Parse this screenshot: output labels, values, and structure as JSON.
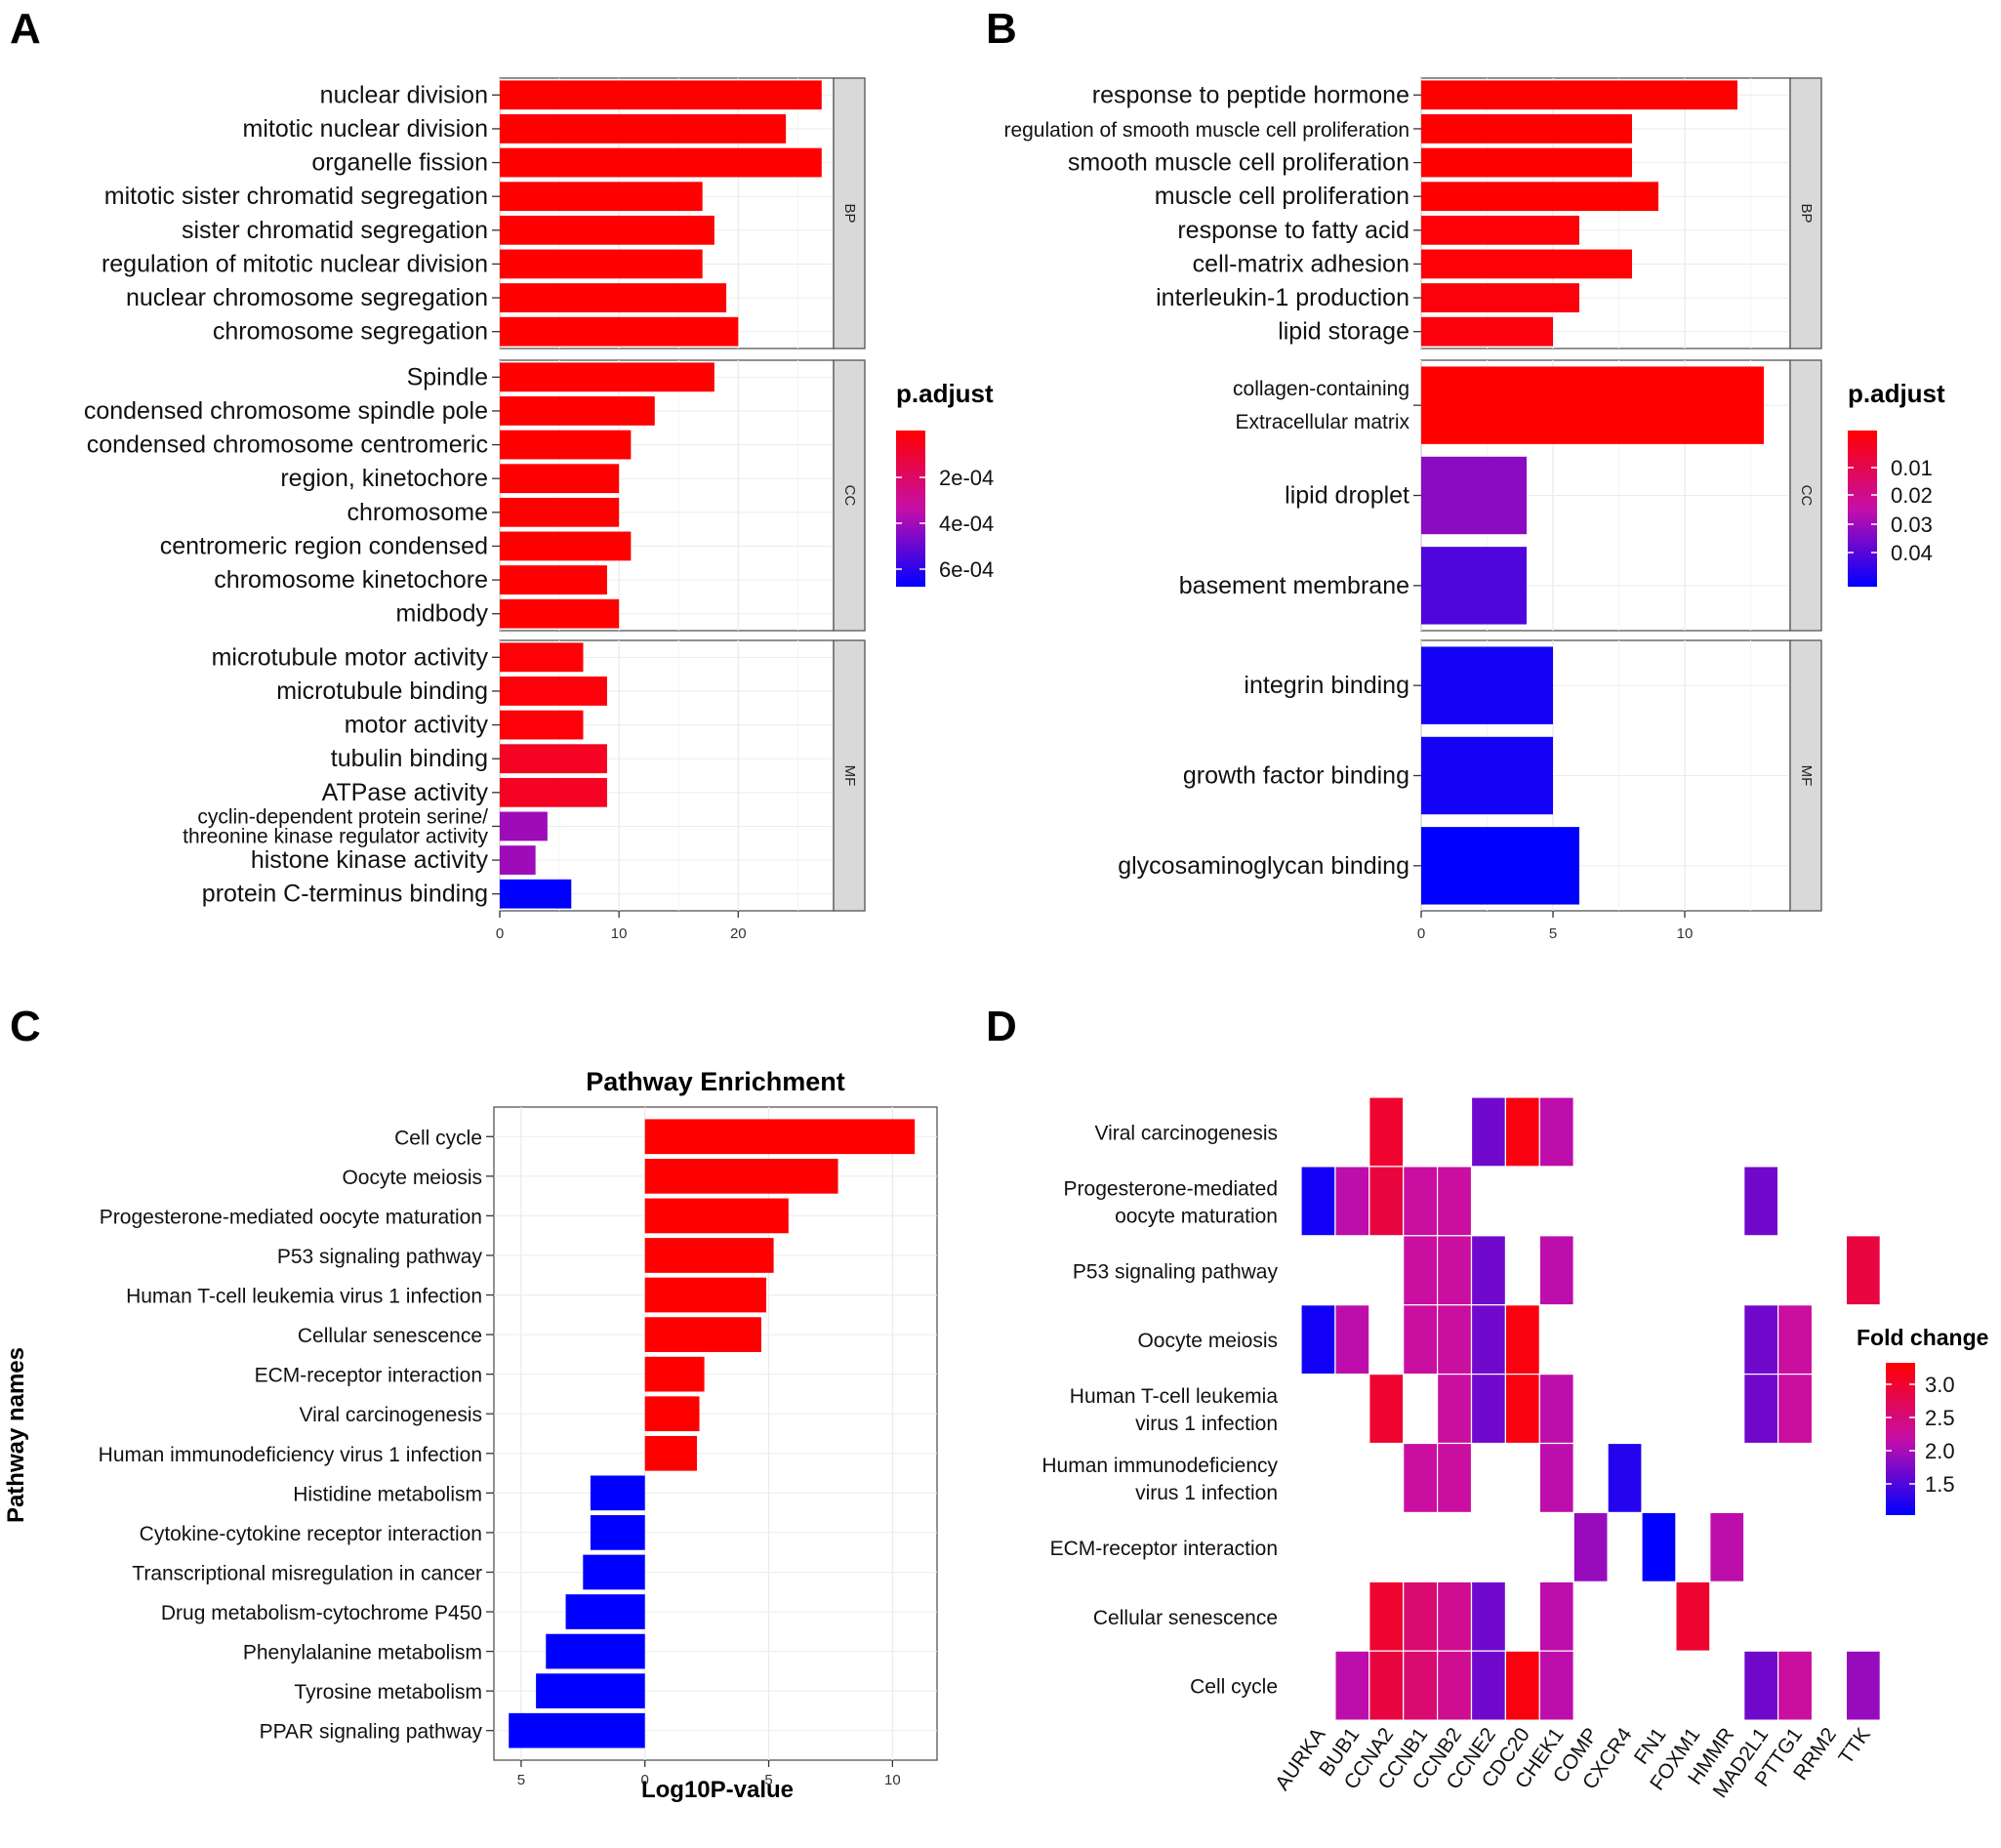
{
  "panels": {
    "a": "A",
    "b": "B",
    "c": "C",
    "d": "D"
  },
  "colors": {
    "high": "#ff0000",
    "mid": "#c60fa8",
    "low": "#0000ff"
  },
  "chart_data": [
    {
      "id": "A",
      "type": "bar",
      "orientation": "horizontal",
      "xlim": [
        0,
        28
      ],
      "xticks": [
        0,
        10,
        20
      ],
      "legend": {
        "title": "p.adjust",
        "ticks": [
          "2e-04",
          "4e-04",
          "6e-04"
        ],
        "placement": "right"
      },
      "facets": [
        {
          "name": "BP",
          "items": [
            {
              "label": "nuclear division",
              "value": 27,
              "p": 0.0
            },
            {
              "label": "mitotic nuclear division",
              "value": 24,
              "p": 0.0
            },
            {
              "label": "organelle fission",
              "value": 27,
              "p": 0.0
            },
            {
              "label": "mitotic sister chromatid segregation",
              "value": 17,
              "p": 0.0
            },
            {
              "label": "sister chromatid segregation",
              "value": 18,
              "p": 0.0
            },
            {
              "label": "regulation of mitotic nuclear division",
              "value": 17,
              "p": 0.0
            },
            {
              "label": "nuclear chromosome segregation",
              "value": 19,
              "p": 0.0
            },
            {
              "label": "chromosome segregation",
              "value": 20,
              "p": 0.0
            }
          ]
        },
        {
          "name": "CC",
          "items": [
            {
              "label": "Spindle",
              "value": 18,
              "p": 0.0
            },
            {
              "label": "condensed chromosome spindle pole",
              "value": 13,
              "p": 0.0
            },
            {
              "label": "condensed chromosome centromeric",
              "value": 11,
              "p": 0.0
            },
            {
              "label": "region, kinetochore",
              "value": 10,
              "p": 0.0
            },
            {
              "label": "chromosome",
              "value": 10,
              "p": 0.0
            },
            {
              "label": "centromeric region condensed",
              "value": 11,
              "p": 0.0
            },
            {
              "label": "chromosome kinetochore",
              "value": 9,
              "p": 0.0
            },
            {
              "label": "midbody",
              "value": 10,
              "p": 0.0
            }
          ]
        },
        {
          "name": "MF",
          "items": [
            {
              "label": "microtubule motor activity",
              "value": 7,
              "p": 0.02
            },
            {
              "label": "microtubule binding",
              "value": 9,
              "p": 0.03
            },
            {
              "label": "motor activity",
              "value": 7,
              "p": 0.03
            },
            {
              "label": "tubulin binding",
              "value": 9,
              "p": 0.1
            },
            {
              "label": "ATPase activity",
              "value": 9,
              "p": 0.1
            },
            {
              "label": "cyclin-dependent protein serine/",
              "label2": "threonine kinase regulator activity",
              "value": 4,
              "p": 0.6
            },
            {
              "label": "histone kinase activity",
              "value": 3,
              "p": 0.6
            },
            {
              "label": "protein C-terminus binding",
              "value": 6,
              "p": 1.0
            }
          ]
        }
      ]
    },
    {
      "id": "B",
      "type": "bar",
      "orientation": "horizontal",
      "xlim": [
        0,
        14
      ],
      "xticks": [
        0,
        5,
        10
      ],
      "legend": {
        "title": "p.adjust",
        "ticks": [
          "0.01",
          "0.02",
          "0.03",
          "0.04"
        ],
        "placement": "right"
      },
      "facets": [
        {
          "name": "BP",
          "items": [
            {
              "label": "response to peptide hormone",
              "value": 12,
              "p": 0.0,
              "small": false
            },
            {
              "label": "regulation of smooth muscle cell proliferation",
              "value": 8,
              "p": 0.0,
              "small": true
            },
            {
              "label": "smooth muscle cell proliferation",
              "value": 8,
              "p": 0.0,
              "small": false
            },
            {
              "label": "muscle cell proliferation",
              "value": 9,
              "p": 0.0,
              "small": false
            },
            {
              "label": "response to fatty acid",
              "value": 6,
              "p": 0.02,
              "small": false
            },
            {
              "label": "cell-matrix adhesion",
              "value": 8,
              "p": 0.02,
              "small": false
            },
            {
              "label": "interleukin-1 production",
              "value": 6,
              "p": 0.04,
              "small": false
            },
            {
              "label": "lipid storage",
              "value": 5,
              "p": 0.04,
              "small": false
            }
          ]
        },
        {
          "name": "CC",
          "items": [
            {
              "label": "collagen-containing",
              "label2": "Extracellular matrix",
              "value": 13,
              "p": 0.0
            },
            {
              "label": "lipid droplet",
              "value": 4,
              "p": 0.65
            },
            {
              "label": "basement membrane",
              "value": 4,
              "p": 0.8
            }
          ]
        },
        {
          "name": "MF",
          "items": [
            {
              "label": "integrin binding",
              "value": 5,
              "p": 0.95
            },
            {
              "label": "growth factor binding",
              "value": 5,
              "p": 0.95
            },
            {
              "label": "glycosaminoglycan binding",
              "value": 6,
              "p": 1.0
            }
          ]
        }
      ]
    },
    {
      "id": "C",
      "type": "bar",
      "orientation": "horizontal",
      "title": "Pathway Enrichment",
      "xlabel": "Log10P-value",
      "ylabel": "Pathway names",
      "xlim": [
        -6.1,
        11.8
      ],
      "xticks": [
        {
          "v": -5,
          "t": "5"
        },
        {
          "v": 0,
          "t": "0"
        },
        {
          "v": 5,
          "t": "5"
        },
        {
          "v": 10,
          "t": "10"
        }
      ],
      "categories": [
        "Cell cycle",
        "Oocyte meiosis",
        "Progesterone-mediated oocyte maturation",
        "P53 signaling pathway",
        "Human T-cell leukemia virus 1 infection",
        "Cellular senescence",
        "ECM-receptor interaction",
        "Viral carcinogenesis",
        "Human immunodeficiency virus 1 infection",
        "Histidine metabolism",
        "Cytokine-cytokine receptor interaction",
        "Transcriptional misregulation in cancer",
        "Drug metabolism-cytochrome P450",
        "Phenylalanine metabolism",
        "Tyrosine metabolism",
        "PPAR signaling pathway"
      ],
      "values": [
        10.9,
        7.8,
        5.8,
        5.2,
        4.9,
        4.7,
        2.4,
        2.2,
        2.1,
        -2.2,
        -2.2,
        -2.5,
        -3.2,
        -4.0,
        -4.4,
        -5.5
      ]
    },
    {
      "id": "D",
      "type": "heatmap",
      "legend": {
        "title": "Fold change",
        "ticks": [
          "3.0",
          "2.5",
          "2.0",
          "1.5"
        ],
        "range": [
          1.2,
          3.3
        ],
        "placement": "right"
      },
      "columns": [
        "AURKA",
        "BUB1",
        "CCNA2",
        "CCNB1",
        "CCNB2",
        "CCNE2",
        "CDC20",
        "CHEK1",
        "COMP",
        "CXCR4",
        "FN1",
        "FOXM1",
        "HMMR",
        "MAD2L1",
        "PTTG1",
        "RRM2",
        "TTK"
      ],
      "rows": [
        {
          "label": "Viral carcinogenesis",
          "cells": [
            {
              "col": 2,
              "v": 3.0
            },
            {
              "col": 5,
              "v": 1.8
            },
            {
              "col": 6,
              "v": 3.2
            },
            {
              "col": 7,
              "v": 2.2
            }
          ]
        },
        {
          "label": "Progesterone-mediated",
          "label2": "oocyte maturation",
          "cells": [
            {
              "col": 0,
              "v": 1.3
            },
            {
              "col": 1,
              "v": 2.2
            },
            {
              "col": 2,
              "v": 2.9
            },
            {
              "col": 3,
              "v": 2.3
            },
            {
              "col": 4,
              "v": 2.3
            },
            {
              "col": 13,
              "v": 1.8
            }
          ]
        },
        {
          "label": "P53 signaling pathway",
          "cells": [
            {
              "col": 3,
              "v": 2.3
            },
            {
              "col": 4,
              "v": 2.3
            },
            {
              "col": 5,
              "v": 1.8
            },
            {
              "col": 7,
              "v": 2.2
            },
            {
              "col": 16,
              "v": 2.9
            }
          ]
        },
        {
          "label": "Oocyte meiosis",
          "cells": [
            {
              "col": 0,
              "v": 1.3
            },
            {
              "col": 1,
              "v": 2.2
            },
            {
              "col": 3,
              "v": 2.3
            },
            {
              "col": 4,
              "v": 2.3
            },
            {
              "col": 5,
              "v": 1.8
            },
            {
              "col": 6,
              "v": 3.2
            },
            {
              "col": 13,
              "v": 1.8
            },
            {
              "col": 14,
              "v": 2.3
            }
          ]
        },
        {
          "label": "Human T-cell leukemia",
          "label2": "virus 1 infection",
          "cells": [
            {
              "col": 2,
              "v": 3.0
            },
            {
              "col": 4,
              "v": 2.3
            },
            {
              "col": 5,
              "v": 1.8
            },
            {
              "col": 6,
              "v": 3.2
            },
            {
              "col": 7,
              "v": 2.2
            },
            {
              "col": 13,
              "v": 1.8
            },
            {
              "col": 14,
              "v": 2.3
            }
          ]
        },
        {
          "label": "Human immunodeficiency",
          "label2": "virus 1 infection",
          "cells": [
            {
              "col": 3,
              "v": 2.3
            },
            {
              "col": 4,
              "v": 2.3
            },
            {
              "col": 7,
              "v": 2.2
            },
            {
              "col": 9,
              "v": 1.4
            }
          ]
        },
        {
          "label": "ECM-receptor interaction",
          "cells": [
            {
              "col": 8,
              "v": 2.0
            },
            {
              "col": 10,
              "v": 1.2
            },
            {
              "col": 12,
              "v": 2.2
            }
          ]
        },
        {
          "label": "Cellular senescence",
          "cells": [
            {
              "col": 2,
              "v": 3.0
            },
            {
              "col": 3,
              "v": 2.6
            },
            {
              "col": 4,
              "v": 2.4
            },
            {
              "col": 5,
              "v": 1.8
            },
            {
              "col": 7,
              "v": 2.2
            },
            {
              "col": 11,
              "v": 3.0
            }
          ]
        },
        {
          "label": "Cell cycle",
          "cells": [
            {
              "col": 1,
              "v": 2.2
            },
            {
              "col": 2,
              "v": 2.9
            },
            {
              "col": 3,
              "v": 2.6
            },
            {
              "col": 4,
              "v": 2.4
            },
            {
              "col": 5,
              "v": 1.8
            },
            {
              "col": 6,
              "v": 3.2
            },
            {
              "col": 7,
              "v": 2.2
            },
            {
              "col": 13,
              "v": 1.8
            },
            {
              "col": 14,
              "v": 2.3
            },
            {
              "col": 16,
              "v": 2.0
            }
          ]
        }
      ]
    }
  ]
}
